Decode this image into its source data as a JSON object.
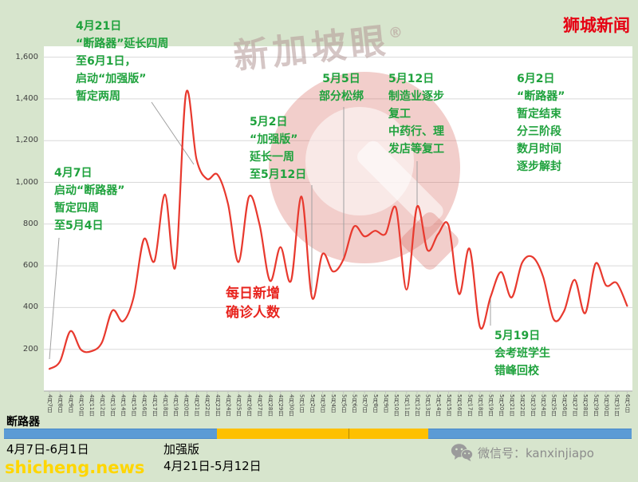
{
  "brand": {
    "title": "狮城新闻"
  },
  "watermark": {
    "text": "新加坡眼",
    "reg": "®"
  },
  "chart_data": {
    "type": "line",
    "title": "每日新增确诊人数",
    "xlabel": "",
    "ylabel": "",
    "ylim": [
      0,
      1600
    ],
    "ytick_interval": 200,
    "ytick_labels": [
      "200",
      "400",
      "600",
      "800",
      "1,000",
      "1,200",
      "1,400",
      "1,600"
    ],
    "grid": true,
    "line_color": "#e8392e",
    "categories": [
      "4月7日",
      "4月8日",
      "4月9日",
      "4月10日",
      "4月11日",
      "4月12日",
      "4月13日",
      "4月14日",
      "4月15日",
      "4月16日",
      "4月17日",
      "4月18日",
      "4月19日",
      "4月20日",
      "4月21日",
      "4月22日",
      "4月23日",
      "4月24日",
      "4月25日",
      "4月26日",
      "4月27日",
      "4月28日",
      "4月29日",
      "4月30日",
      "5月1日",
      "5月2日",
      "5月3日",
      "5月4日",
      "5月5日",
      "5月6日",
      "5月7日",
      "5月8日",
      "5月9日",
      "5月10日",
      "5月11日",
      "5月12日",
      "5月13日",
      "5月14日",
      "5月15日",
      "5月16日",
      "5月17日",
      "5月18日",
      "5月19日",
      "5月20日",
      "5月21日",
      "5月22日",
      "5月23日",
      "5月24日",
      "5月25日",
      "5月26日",
      "5月27日",
      "5月28日",
      "5月29日",
      "5月30日",
      "5月31日",
      "6月1日"
    ],
    "values": [
      106,
      142,
      287,
      198,
      191,
      233,
      386,
      334,
      447,
      728,
      623,
      942,
      596,
      1426,
      1111,
      1016,
      1037,
      897,
      618,
      931,
      799,
      528,
      690,
      528,
      932,
      447,
      657,
      573,
      632,
      788,
      741,
      768,
      753,
      876,
      486,
      884,
      675,
      752,
      793,
      465,
      682,
      305,
      451,
      570,
      448,
      614,
      642,
      548,
      344,
      383,
      533,
      373,
      611,
      506,
      518,
      408
    ]
  },
  "center_label": {
    "text": "每日新增\n确诊人数"
  },
  "annotations": {
    "apr7": {
      "text": "4月7日\n启动“断路器”\n暂定四周\n至5月4日"
    },
    "apr21": {
      "text": "4月21日\n“断路器”延长四周\n至6月1日，\n启动“加强版”\n暂定两周"
    },
    "may2": {
      "text": "5月2日\n“加强版”\n延长一周\n至5月12日"
    },
    "may5": {
      "text": "5月5日\n部分松绑"
    },
    "may12": {
      "text": "5月12日\n制造业逐步\n复工\n中药行、理\n发店等复工"
    },
    "jun2": {
      "text": "6月2日\n“断路器”\n暂定结束\n分三阶段\n数月时间\n逐步解封"
    },
    "may19": {
      "text": "5月19日\n会考班学生\n错峰回校"
    }
  },
  "timeline": {
    "circuit_breaker_label": "断路器",
    "circuit_breaker_range": "4月7日-6月1日",
    "enhanced_label": "加强版",
    "enhanced_range": "4月21日-5月12日",
    "bar_blue_color": "#5b9bd5",
    "bar_yellow_color": "#fec000"
  },
  "footer": {
    "site": "shicheng.news",
    "wechat": "微信号：kanxinjiapo"
  }
}
